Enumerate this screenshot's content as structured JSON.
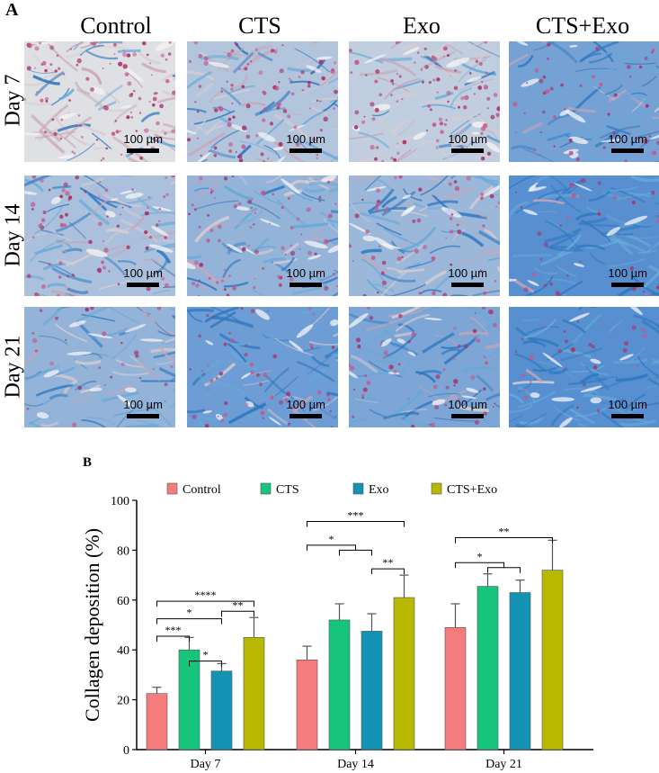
{
  "panel_a": {
    "label": "A",
    "columns": [
      "Control",
      "CTS",
      "Exo",
      "CTS+Exo"
    ],
    "rows": [
      "Day 7",
      "Day 14",
      "Day 21"
    ],
    "scale_bar_label": "100 µm"
  },
  "chart_data": {
    "type": "bar",
    "panel_label": "B",
    "categories": [
      "Day 7",
      "Day 14",
      "Day 21"
    ],
    "series": [
      {
        "name": "Control",
        "color": "#f47c7c",
        "values": [
          22.5,
          36.0,
          49.0
        ],
        "errors": [
          2.5,
          5.5,
          9.5
        ]
      },
      {
        "name": "CTS",
        "color": "#16c47c",
        "values": [
          40.0,
          52.0,
          65.5
        ],
        "errors": [
          5.0,
          6.5,
          5.0
        ]
      },
      {
        "name": "Exo",
        "color": "#1492b4",
        "values": [
          31.5,
          47.5,
          63.0
        ],
        "errors": [
          3.0,
          7.0,
          5.0
        ]
      },
      {
        "name": "CTS+Exo",
        "color": "#b8b800",
        "values": [
          45.0,
          61.0,
          72.0
        ],
        "errors": [
          8.0,
          9.0,
          12.0
        ]
      }
    ],
    "ylabel": "Collagen deposition (%)",
    "xlabel": "",
    "ylim": [
      0,
      100
    ],
    "yticks": [
      0,
      20,
      40,
      60,
      80,
      100
    ],
    "legend_position": "top",
    "significance": [
      {
        "group": 0,
        "from": 0,
        "to": 3,
        "y": 59.5,
        "label": "****"
      },
      {
        "group": 0,
        "from": 0,
        "to": 2,
        "y": 52.5,
        "label": "*"
      },
      {
        "group": 0,
        "from": 0,
        "to": 1,
        "y": 45.5,
        "label": "***"
      },
      {
        "group": 0,
        "from": 1,
        "to": 2,
        "y": 35.5,
        "label": "*"
      },
      {
        "group": 0,
        "from": 2,
        "to": 3,
        "y": 55.5,
        "label": "**"
      },
      {
        "group": 1,
        "from": 0,
        "to": 3,
        "y": 91.5,
        "label": "***"
      },
      {
        "group": 1,
        "from": 0,
        "to": 1.5,
        "y": 82.0,
        "label": "*"
      },
      {
        "group": 1,
        "from": 1,
        "to": 2,
        "y": 80.0,
        "label": "",
        "bracket": true
      },
      {
        "group": 1,
        "from": 2,
        "to": 3,
        "y": 72.5,
        "label": "**"
      },
      {
        "group": 2,
        "from": 0,
        "to": 3,
        "y": 85.0,
        "label": "**"
      },
      {
        "group": 2,
        "from": 0,
        "to": 1.5,
        "y": 75.0,
        "label": "*"
      },
      {
        "group": 2,
        "from": 1,
        "to": 2,
        "y": 73.0,
        "label": "",
        "bracket": true
      }
    ]
  },
  "tile_colors": {
    "stain_pink": "#b4507a",
    "stain_blue": "#4a9ad0",
    "background_pale": "#e6e2e0"
  }
}
